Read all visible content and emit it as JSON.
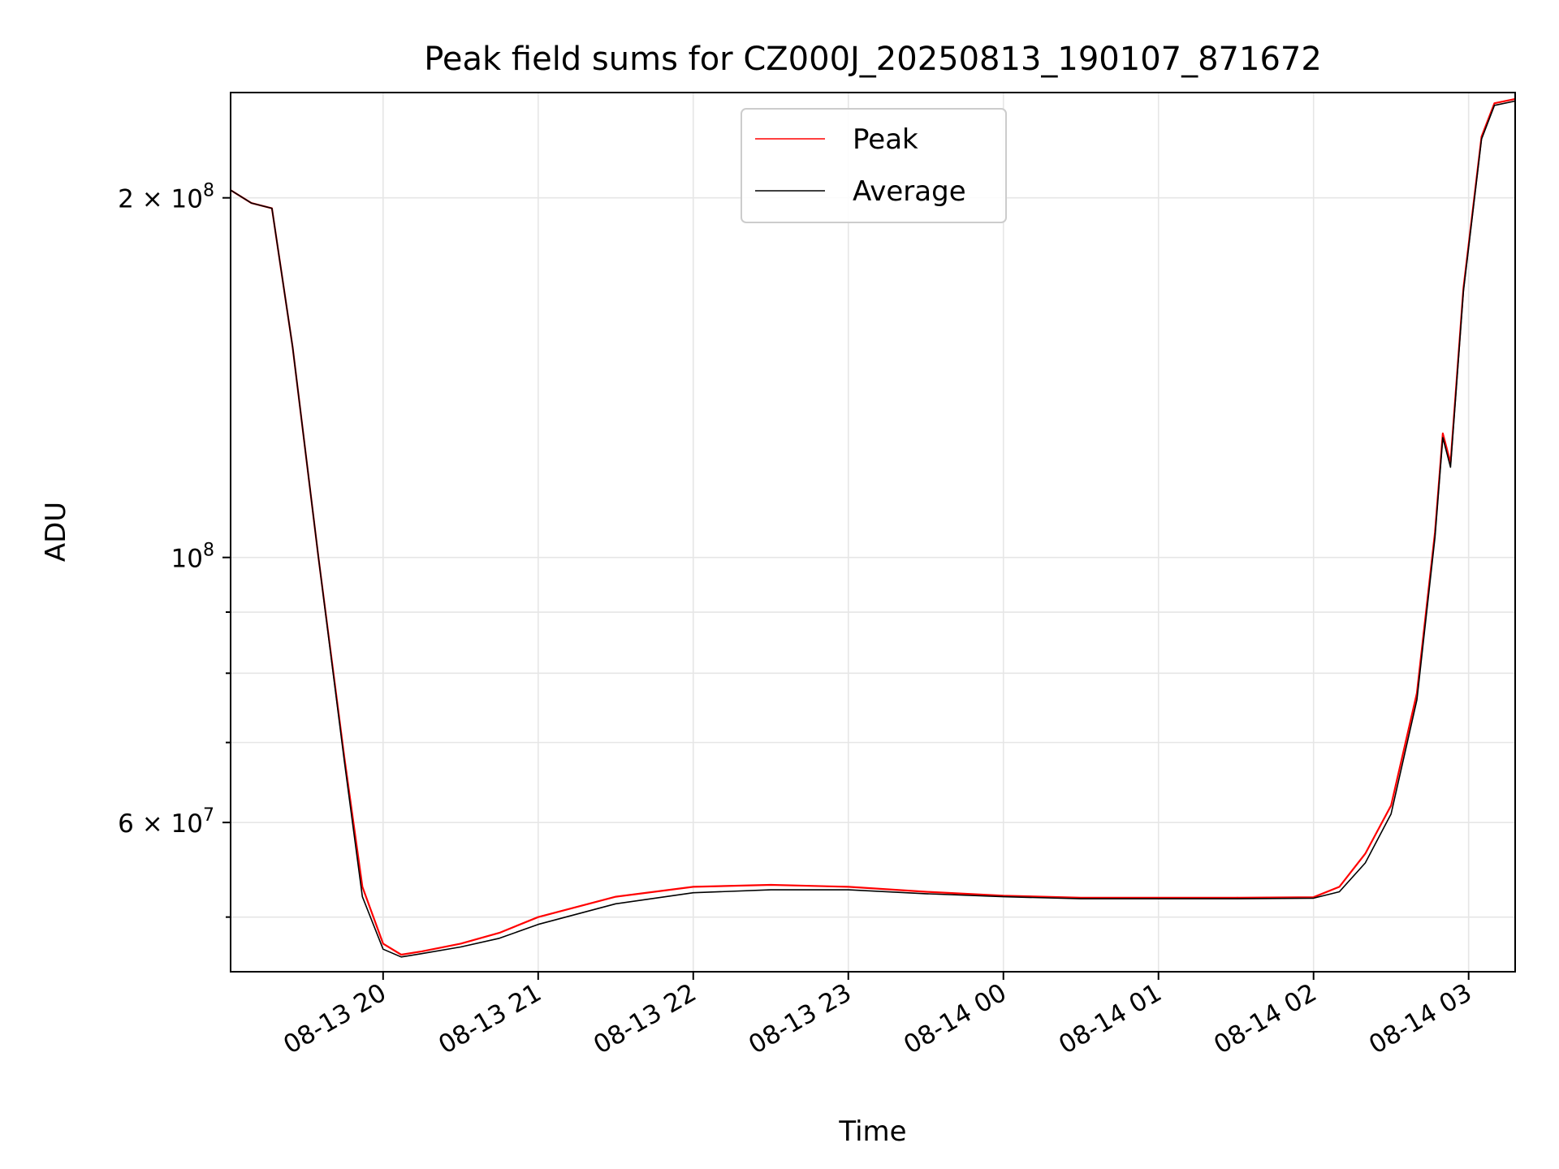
{
  "chart_data": {
    "type": "line",
    "title": "Peak field sums for CZ000J_20250813_190107_871672",
    "xlabel": "Time",
    "ylabel": "ADU",
    "yscale": "log",
    "xlim": [
      "2025-08-13 19:01",
      "2025-08-14 03:18"
    ],
    "ylim": [
      45000000,
      245000000
    ],
    "grid": true,
    "legend_position": "top-center",
    "x_ticks": [
      {
        "time": "2025-08-13 20:00",
        "label": "08-13 20"
      },
      {
        "time": "2025-08-13 21:00",
        "label": "08-13 21"
      },
      {
        "time": "2025-08-13 22:00",
        "label": "08-13 22"
      },
      {
        "time": "2025-08-13 23:00",
        "label": "08-13 23"
      },
      {
        "time": "2025-08-14 00:00",
        "label": "08-14 00"
      },
      {
        "time": "2025-08-14 01:00",
        "label": "08-14 01"
      },
      {
        "time": "2025-08-14 02:00",
        "label": "08-14 02"
      },
      {
        "time": "2025-08-14 03:00",
        "label": "08-14 03"
      }
    ],
    "y_ticks": [
      {
        "value": 200000000,
        "mantissa": "2",
        "times": "×",
        "base": "10",
        "exp": "8"
      },
      {
        "value": 100000000,
        "mantissa": "",
        "times": "",
        "base": "10",
        "exp": "8"
      },
      {
        "value": 60000000,
        "mantissa": "6",
        "times": "×",
        "base": "10",
        "exp": "7"
      }
    ],
    "y_minor_ticks": [
      50000000,
      70000000,
      80000000,
      90000000
    ],
    "series": [
      {
        "name": "Peak",
        "color": "#ff0000",
        "x": [
          "2025-08-13 19:01",
          "2025-08-13 19:09",
          "2025-08-13 19:17",
          "2025-08-13 19:25",
          "2025-08-13 19:35",
          "2025-08-13 19:45",
          "2025-08-13 19:52",
          "2025-08-13 20:00",
          "2025-08-13 20:07",
          "2025-08-13 20:15",
          "2025-08-13 20:30",
          "2025-08-13 20:45",
          "2025-08-13 21:00",
          "2025-08-13 21:30",
          "2025-08-13 22:00",
          "2025-08-13 22:30",
          "2025-08-13 23:00",
          "2025-08-13 23:30",
          "2025-08-14 00:00",
          "2025-08-14 00:30",
          "2025-08-14 01:00",
          "2025-08-14 01:30",
          "2025-08-14 02:00",
          "2025-08-14 02:10",
          "2025-08-14 02:20",
          "2025-08-14 02:30",
          "2025-08-14 02:40",
          "2025-08-14 02:47",
          "2025-08-14 02:50",
          "2025-08-14 02:53",
          "2025-08-14 02:58",
          "2025-08-14 03:05",
          "2025-08-14 03:10",
          "2025-08-14 03:18"
        ],
        "values": [
          203000000,
          198000000,
          196000000,
          150000000,
          100000000,
          68000000,
          53000000,
          47500000,
          46500000,
          46800000,
          47500000,
          48500000,
          50000000,
          52000000,
          53000000,
          53200000,
          53000000,
          52500000,
          52100000,
          51900000,
          51900000,
          51900000,
          51950000,
          53000000,
          56500000,
          62000000,
          77000000,
          105000000,
          127000000,
          120000000,
          168000000,
          225000000,
          240000000,
          242000000
        ]
      },
      {
        "name": "Average",
        "color": "#000000",
        "x": [
          "2025-08-13 19:01",
          "2025-08-13 19:09",
          "2025-08-13 19:17",
          "2025-08-13 19:25",
          "2025-08-13 19:35",
          "2025-08-13 19:45",
          "2025-08-13 19:52",
          "2025-08-13 20:00",
          "2025-08-13 20:07",
          "2025-08-13 20:15",
          "2025-08-13 20:30",
          "2025-08-13 20:45",
          "2025-08-13 21:00",
          "2025-08-13 21:30",
          "2025-08-13 22:00",
          "2025-08-13 22:30",
          "2025-08-13 23:00",
          "2025-08-13 23:30",
          "2025-08-14 00:00",
          "2025-08-14 00:30",
          "2025-08-14 01:00",
          "2025-08-14 01:30",
          "2025-08-14 02:00",
          "2025-08-14 02:10",
          "2025-08-14 02:20",
          "2025-08-14 02:30",
          "2025-08-14 02:40",
          "2025-08-14 02:47",
          "2025-08-14 02:50",
          "2025-08-14 02:53",
          "2025-08-14 02:58",
          "2025-08-14 03:05",
          "2025-08-14 03:10",
          "2025-08-14 03:18"
        ],
        "values": [
          203000000,
          198000000,
          196000000,
          150000000,
          100000000,
          67500000,
          52000000,
          47000000,
          46300000,
          46600000,
          47200000,
          48000000,
          49300000,
          51300000,
          52400000,
          52700000,
          52700000,
          52300000,
          52000000,
          51800000,
          51800000,
          51800000,
          51850000,
          52500000,
          55500000,
          61000000,
          76000000,
          104000000,
          126000000,
          119000000,
          167000000,
          224000000,
          239000000,
          241000000
        ]
      }
    ]
  }
}
